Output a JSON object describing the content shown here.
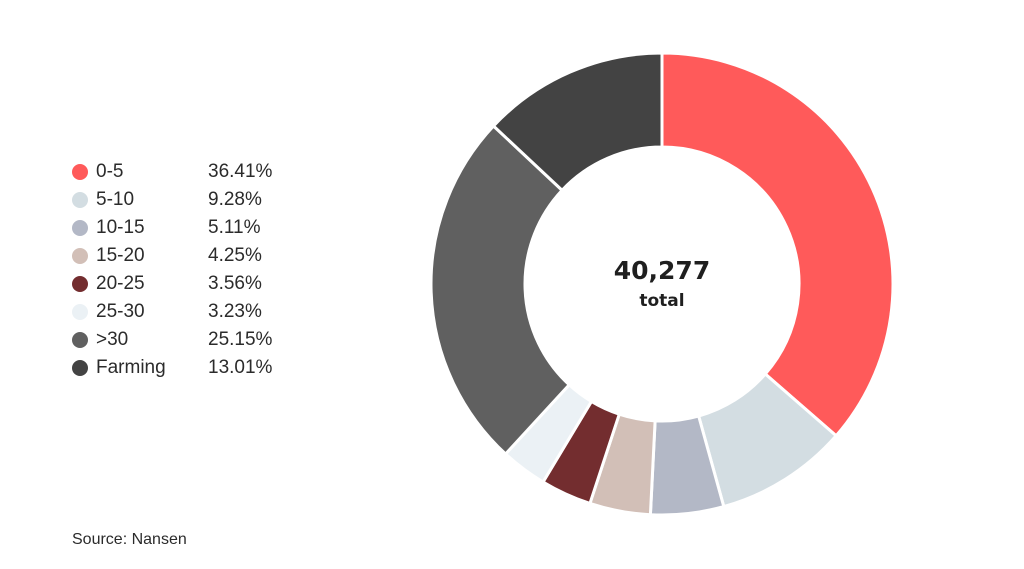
{
  "chart_data": {
    "type": "pie",
    "variant": "donut",
    "slices": [
      {
        "label": "0-5",
        "value": 36.41,
        "display": "36.41%",
        "color": "#ff5a5a"
      },
      {
        "label": "5-10",
        "value": 9.28,
        "display": "9.28%",
        "color": "#d3dde2"
      },
      {
        "label": "10-15",
        "value": 5.11,
        "display": "5.11%",
        "color": "#b3b8c6"
      },
      {
        "label": "15-20",
        "value": 4.25,
        "display": "4.25%",
        "color": "#d2bfb7"
      },
      {
        "label": "20-25",
        "value": 3.56,
        "display": "3.56%",
        "color": "#732d2f"
      },
      {
        "label": "25-30",
        "value": 3.23,
        "display": "3.23%",
        "color": "#ebf1f5"
      },
      {
        "label": ">30",
        "value": 25.15,
        "display": "25.15%",
        "color": "#606060"
      },
      {
        "label": "Farming",
        "value": 13.01,
        "display": "13.01%",
        "color": "#434343"
      }
    ],
    "center_total": "40,277",
    "center_label": "total",
    "legend_position": "left",
    "start_angle": "top",
    "direction": "clockwise"
  },
  "source": "Source: Nansen"
}
